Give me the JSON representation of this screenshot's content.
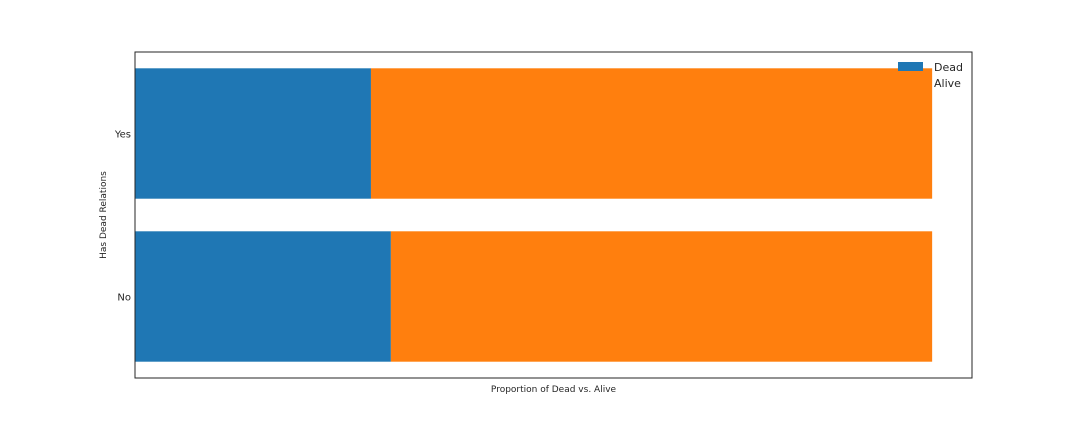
{
  "chart_data": {
    "type": "bar",
    "orientation": "horizontal",
    "stacked": true,
    "categories": [
      "No",
      "Yes"
    ],
    "series": [
      {
        "name": "Dead",
        "values": [
          0.321,
          0.296
        ],
        "color": "#1f77b4"
      },
      {
        "name": "Alive",
        "values": [
          0.679,
          0.704
        ],
        "color": "#ff7f0e"
      }
    ],
    "xlabel": "Proportion of Dead vs. Alive",
    "ylabel": "Has Dead Relations",
    "xlim": [
      0,
      1.05
    ],
    "x_ticks_visible": false,
    "grid": false,
    "legend_placement": "top-right"
  }
}
